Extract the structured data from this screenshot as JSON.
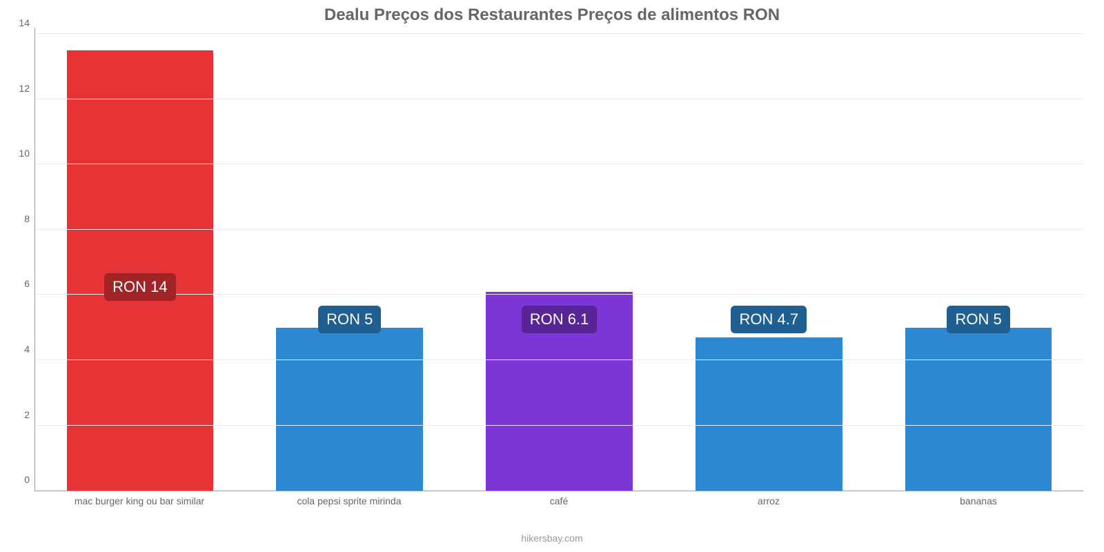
{
  "chart": {
    "type": "bar",
    "title": "Dealu Preços dos Restaurantes Preços de alimentos RON",
    "title_fontsize": 24,
    "title_color": "#666666",
    "background_color": "#ffffff",
    "grid_color": "#ececec",
    "axis_color": "#999999",
    "tick_font_color": "#666666",
    "tick_fontsize": 14,
    "ylim": [
      0,
      14.2
    ],
    "yticks": [
      0,
      2,
      4,
      6,
      8,
      10,
      12,
      14
    ],
    "categories": [
      "mac burger king ou bar similar",
      "cola pepsi sprite mirinda",
      "café",
      "arroz",
      "bananas"
    ],
    "values": [
      13.5,
      5.0,
      6.1,
      4.7,
      5.0
    ],
    "bar_colors": [
      "#e63336",
      "#2e88d1",
      "#7c36d6",
      "#2e88d1",
      "#2e88d1"
    ],
    "bar_width": 0.7,
    "value_labels": [
      "RON 14",
      "RON 5",
      "RON 6.1",
      "RON 4.7",
      "RON 5"
    ],
    "value_label_chip_colors": [
      "#a02326",
      "#205f92",
      "#572596",
      "#205f92",
      "#205f92"
    ],
    "value_label_fontsize": 22,
    "value_label_text_color": "#ffffff",
    "value_label_offsets_pct": [
      44,
      37,
      37,
      37,
      37
    ],
    "footer": "hikersbay.com",
    "footer_color": "#999999",
    "footer_fontsize": 14
  }
}
